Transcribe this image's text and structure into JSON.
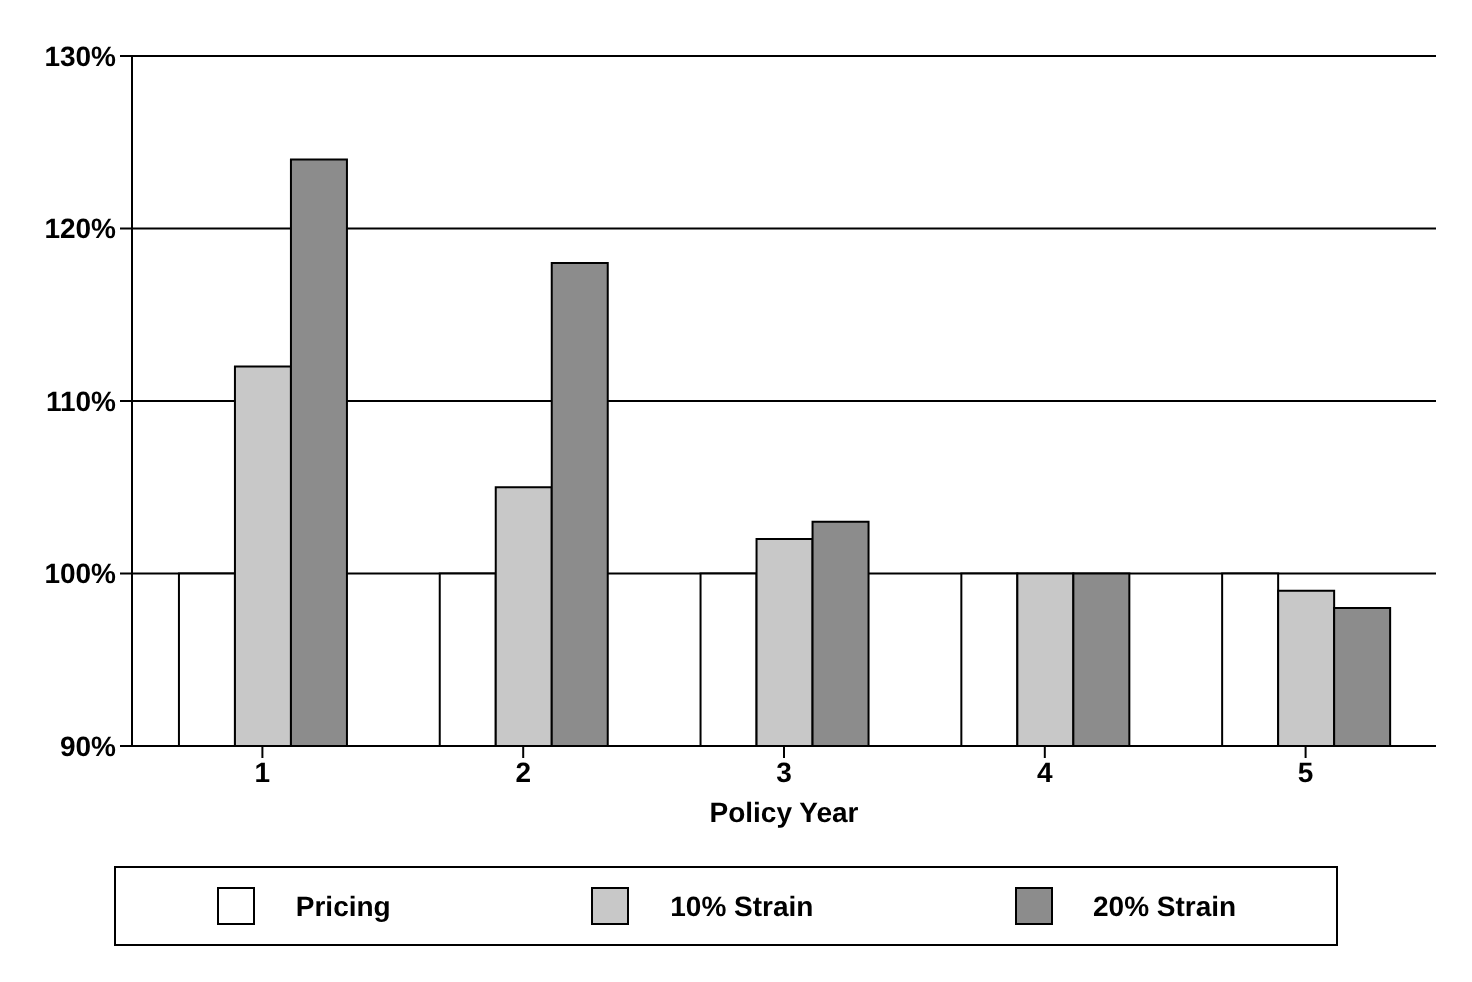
{
  "chart_data": {
    "type": "bar",
    "xlabel": "Policy Year",
    "categories": [
      "1",
      "2",
      "3",
      "4",
      "5"
    ],
    "series": [
      {
        "name": "Pricing",
        "color": "#ffffff",
        "values": [
          100,
          100,
          100,
          100,
          100
        ]
      },
      {
        "name": "10% Strain",
        "color": "#c8c8c8",
        "values": [
          112,
          105,
          102,
          100,
          99
        ]
      },
      {
        "name": "20% Strain",
        "color": "#8c8c8c",
        "values": [
          124,
          118,
          103,
          100,
          98
        ]
      }
    ],
    "ylim": [
      90,
      130
    ],
    "yticks": [
      {
        "value": 90,
        "label": "90%"
      },
      {
        "value": 100,
        "label": "100%"
      },
      {
        "value": 110,
        "label": "110%"
      },
      {
        "value": 120,
        "label": "120%"
      },
      {
        "value": 130,
        "label": "130%"
      }
    ],
    "grid": "y",
    "legend": "bottom"
  }
}
